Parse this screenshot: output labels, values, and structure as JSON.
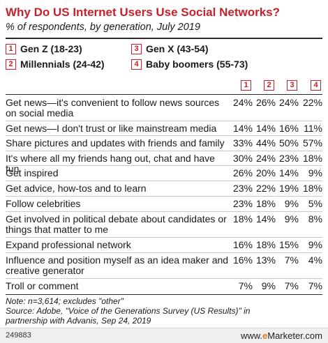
{
  "chart_data": {
    "type": "table",
    "title": "Why Do US Internet Users Use Social Networks?",
    "subtitle": "% of respondents, by generation, July 2019",
    "legend": [
      {
        "num": "1",
        "label": "Gen Z (18-23)"
      },
      {
        "num": "2",
        "label": "Millennials (24-42)"
      },
      {
        "num": "3",
        "label": "Gen X (43-54)"
      },
      {
        "num": "4",
        "label": "Baby boomers (55-73)"
      }
    ],
    "column_headers": [
      "1",
      "2",
      "3",
      "4"
    ],
    "rows": [
      {
        "label": "Get news—it's convenient to follow news sources\non social media",
        "values": [
          "24%",
          "26%",
          "24%",
          "22%"
        ]
      },
      {
        "label": "Get news—I don't trust or like mainstream media",
        "values": [
          "14%",
          "14%",
          "16%",
          "11%"
        ]
      },
      {
        "label": "Share pictures and updates  with friends and family",
        "values": [
          "33%",
          "44%",
          "50%",
          "57%"
        ]
      },
      {
        "label": "It's where all my friends hang  out, chat and have fun",
        "values": [
          "30%",
          "24%",
          "23%",
          "18%"
        ]
      },
      {
        "label": "Get inspired",
        "values": [
          "26%",
          "20%",
          "14%",
          "9%"
        ]
      },
      {
        "label": "Get advice, how-tos and to learn",
        "values": [
          "23%",
          "22%",
          "19%",
          "18%"
        ]
      },
      {
        "label": "Follow celebrities",
        "values": [
          "23%",
          "18%",
          "9%",
          "5%"
        ]
      },
      {
        "label": "Get involved in political debate about candidates or\nthings that matter to me",
        "values": [
          "18%",
          "14%",
          "9%",
          "8%"
        ]
      },
      {
        "label": "Expand professional network",
        "values": [
          "16%",
          "18%",
          "15%",
          "9%"
        ]
      },
      {
        "label": "Influence and position myself as an idea maker and\ncreative generator",
        "values": [
          "16%",
          "13%",
          "7%",
          "4%"
        ]
      },
      {
        "label": "Troll or comment",
        "values": [
          "7%",
          "9%",
          "7%",
          "7%"
        ]
      }
    ],
    "note_lines": [
      "Note: n=3,614; excludes \"other\"",
      "Source: Adobe, \"Voice of the Generations Survey (US Results)\" in",
      "partnership with Advanis, Sep 24, 2019"
    ],
    "chart_id": "249883",
    "brand_prefix": "www.",
    "brand_e": "e",
    "brand_suffix": "Marketer.com"
  },
  "colors": {
    "title": "#c8202a",
    "accent_box": "#c8202a",
    "brand_e": "#e07b1a"
  }
}
